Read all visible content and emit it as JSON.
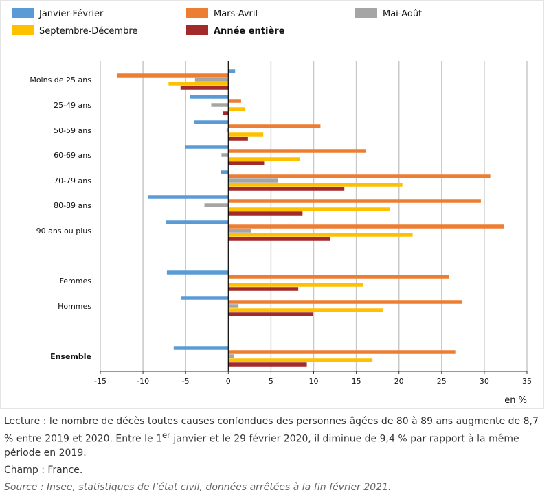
{
  "chart_data": {
    "type": "bar",
    "orientation": "horizontal",
    "categories": [
      "Moins de 25 ans",
      "25-49 ans",
      "50-59 ans",
      "60-69 ans",
      "70-79 ans",
      "80-89 ans",
      "90 ans ou plus",
      "Femmes",
      "Hommes",
      "Ensemble"
    ],
    "bold_categories": [
      "Ensemble"
    ],
    "series": [
      {
        "name": "Janvier-Février",
        "color": "#5b9bd5",
        "values": [
          0.8,
          -4.5,
          -4.0,
          -5.1,
          -0.9,
          -9.4,
          -7.3,
          -7.2,
          -5.5,
          -6.4
        ]
      },
      {
        "name": "Mars-Avril",
        "color": "#ed7d31",
        "values": [
          -13.0,
          1.5,
          10.8,
          16.1,
          30.7,
          29.6,
          32.3,
          25.9,
          27.4,
          26.6
        ]
      },
      {
        "name": "Mai-Août",
        "color": "#a5a5a5",
        "values": [
          -3.9,
          -2.0,
          -0.2,
          -0.8,
          5.8,
          -2.8,
          2.7,
          0.0,
          1.2,
          0.7
        ]
      },
      {
        "name": "Septembre-Décembre",
        "color": "#ffc000",
        "values": [
          -7.0,
          2.0,
          4.1,
          8.4,
          20.4,
          18.9,
          21.6,
          15.8,
          18.1,
          16.9
        ]
      },
      {
        "name": "Année entière",
        "color": "#a32a2a",
        "values": [
          -5.6,
          -0.6,
          2.3,
          4.2,
          13.6,
          8.7,
          11.9,
          8.2,
          9.9,
          9.2
        ]
      }
    ],
    "bold_legend": [
      "Année entière"
    ],
    "x_ticks": [
      -15,
      -10,
      -5,
      0,
      5,
      10,
      15,
      20,
      25,
      30,
      35
    ],
    "xlim": [
      -15,
      35
    ],
    "xlabel": "en %",
    "grid": "vertical"
  },
  "notes": {
    "lecture_a": "Lecture : le nombre de décès toutes causes confondues des personnes âgées de 80 à 89 ans augmente de 8,7 % entre 2019 et 2020. Entre le 1",
    "lecture_sup": "er",
    "lecture_b": " janvier et le 29 février 2020, il diminue de 9,4 % par rapport à la même période en 2019.",
    "champ": "Champ : France.",
    "source": "Source : Insee, statistiques de l’état civil, données arrêtées à la fin février 2021."
  }
}
